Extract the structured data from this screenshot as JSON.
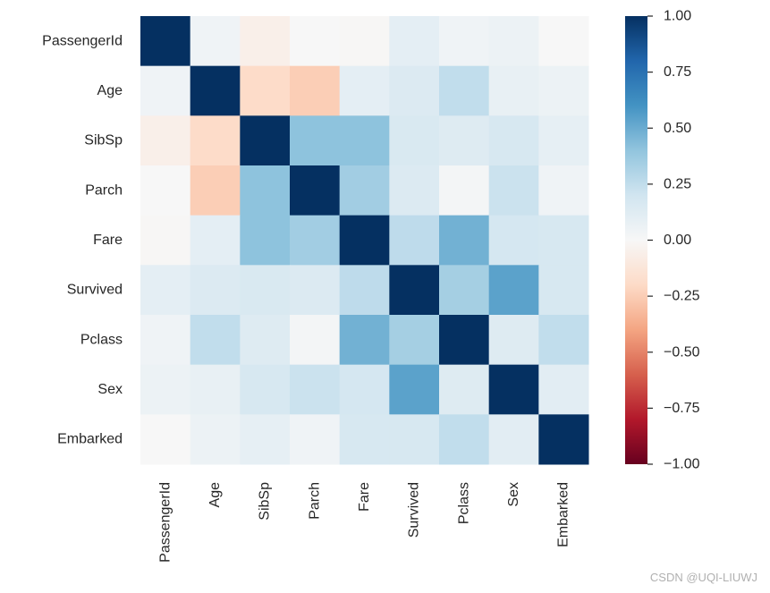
{
  "chart_data": {
    "type": "heatmap",
    "title": "",
    "xlabel": "",
    "ylabel": "",
    "row_labels": [
      "PassengerId",
      "Age",
      "SibSp",
      "Parch",
      "Fare",
      "Survived",
      "Pclass",
      "Sex",
      "Embarked"
    ],
    "col_labels": [
      "PassengerId",
      "Age",
      "SibSp",
      "Parch",
      "Fare",
      "Survived",
      "Pclass",
      "Sex",
      "Embarked"
    ],
    "values": [
      [
        1.0,
        0.04,
        -0.06,
        0.0,
        -0.01,
        0.1,
        0.04,
        0.06,
        0.0
      ],
      [
        0.04,
        1.0,
        -0.19,
        -0.25,
        0.1,
        0.14,
        0.25,
        0.08,
        0.06
      ],
      [
        -0.06,
        -0.19,
        1.0,
        0.41,
        0.41,
        0.16,
        0.13,
        0.17,
        0.09
      ],
      [
        0.0,
        -0.25,
        0.41,
        1.0,
        0.35,
        0.14,
        0.02,
        0.22,
        0.04
      ],
      [
        -0.01,
        0.1,
        0.41,
        0.35,
        1.0,
        0.26,
        0.48,
        0.18,
        0.17
      ],
      [
        0.1,
        0.14,
        0.16,
        0.14,
        0.26,
        1.0,
        0.34,
        0.54,
        0.17
      ],
      [
        0.04,
        0.25,
        0.13,
        0.02,
        0.48,
        0.34,
        1.0,
        0.13,
        0.25
      ],
      [
        0.06,
        0.08,
        0.17,
        0.22,
        0.18,
        0.54,
        0.13,
        1.0,
        0.11
      ],
      [
        0.0,
        0.06,
        0.09,
        0.04,
        0.17,
        0.17,
        0.25,
        0.11,
        1.0
      ]
    ],
    "colormap": "RdBu_r",
    "vmin": -1.0,
    "vmax": 1.0,
    "colorbar": {
      "placement": "right",
      "ticks": [
        1.0,
        0.75,
        0.5,
        0.25,
        0.0,
        -0.25,
        -0.5,
        -0.75,
        -1.0
      ],
      "tick_labels": [
        "1.00",
        "0.75",
        "0.50",
        "0.25",
        "0.00",
        "−0.25",
        "−0.50",
        "−0.75",
        "−1.00"
      ]
    },
    "x_tick_rotation": "vertical",
    "grid": false
  },
  "colormap_stops": [
    "#67001f",
    "#b2182b",
    "#d6604d",
    "#f4a582",
    "#fddbc7",
    "#f7f7f7",
    "#d1e5f0",
    "#92c5de",
    "#4393c3",
    "#2166ac",
    "#053061"
  ],
  "watermark": "CSDN @UQI-LIUWJ"
}
